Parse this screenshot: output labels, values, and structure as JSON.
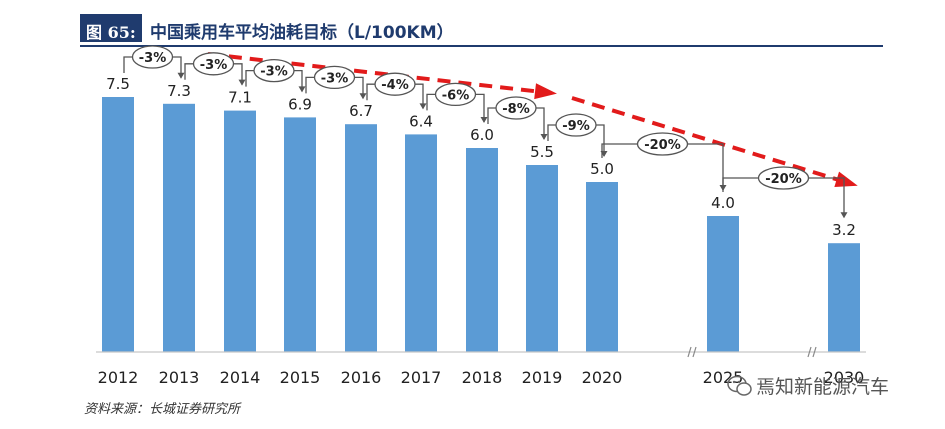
{
  "header": {
    "figure_label": "图 65:",
    "title": "中国乘用车平均油耗目标（L/100KM）"
  },
  "source_text": "资料来源：长城证券研究所",
  "watermark_text": "焉知新能源汽车",
  "colors": {
    "bar": "#5b9bd5",
    "arrow": "#e21b1b",
    "title_bg": "#1f3b6e",
    "text": "#333333"
  },
  "chart_data": {
    "type": "bar",
    "title": "中国乘用车平均油耗目标（L/100KM）",
    "categories": [
      "2012",
      "2013",
      "2014",
      "2015",
      "2016",
      "2017",
      "2018",
      "2019",
      "2020",
      "2025",
      "2030"
    ],
    "values": [
      7.5,
      7.3,
      7.1,
      6.9,
      6.7,
      6.4,
      6.0,
      5.5,
      5.0,
      4.0,
      3.2
    ],
    "value_labels": [
      "7.5",
      "7.3",
      "7.1",
      "6.9",
      "6.7",
      "6.4",
      "6.0",
      "5.5",
      "5.0",
      "4.0",
      "3.2"
    ],
    "changes": [
      {
        "from": "2012",
        "to": "2013",
        "label": "-3%"
      },
      {
        "from": "2013",
        "to": "2014",
        "label": "-3%"
      },
      {
        "from": "2014",
        "to": "2015",
        "label": "-3%"
      },
      {
        "from": "2015",
        "to": "2016",
        "label": "-3%"
      },
      {
        "from": "2016",
        "to": "2017",
        "label": "-4%"
      },
      {
        "from": "2017",
        "to": "2018",
        "label": "-6%"
      },
      {
        "from": "2018",
        "to": "2019",
        "label": "-8%"
      },
      {
        "from": "2019",
        "to": "2020",
        "label": "-9%"
      },
      {
        "from": "2020",
        "to": "2025",
        "label": "-20%"
      },
      {
        "from": "2025",
        "to": "2030",
        "label": "-20%"
      }
    ],
    "axis_breaks": [
      "2020-2025",
      "2025-2030"
    ],
    "ylim": [
      0,
      9
    ],
    "grid": false,
    "legend": "none"
  }
}
